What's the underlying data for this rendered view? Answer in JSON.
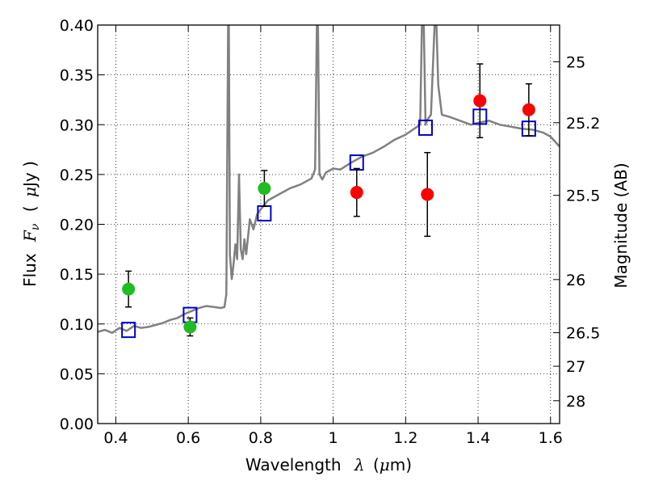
{
  "chart_data": {
    "type": "scatter",
    "xlabel": {
      "prefix": "Wavelength",
      "symbol": "λ",
      "unit_open": "(",
      "unit_mu": "μ",
      "unit_rest": "m)"
    },
    "ylabel": {
      "prefix": "Flux",
      "symbol": "F",
      "sub": "ν",
      "unit_open": "(",
      "unit_mu": "μ",
      "unit_rest": "Jy )"
    },
    "y2label": "Magnitude (AB)",
    "xlim": [
      0.35,
      1.625
    ],
    "ylim": [
      0.0,
      0.4
    ],
    "grid": true,
    "x_ticks": [
      {
        "v": 0.4,
        "label": "0.4"
      },
      {
        "v": 0.6,
        "label": "0.6"
      },
      {
        "v": 0.8,
        "label": "0.8"
      },
      {
        "v": 1.0,
        "label": "1"
      },
      {
        "v": 1.2,
        "label": "1.2"
      },
      {
        "v": 1.4,
        "label": "1.4"
      },
      {
        "v": 1.6,
        "label": "1.6"
      }
    ],
    "y_ticks": [
      {
        "v": 0.0,
        "label": "0.00"
      },
      {
        "v": 0.05,
        "label": "0.05"
      },
      {
        "v": 0.1,
        "label": "0.10"
      },
      {
        "v": 0.15,
        "label": "0.15"
      },
      {
        "v": 0.2,
        "label": "0.20"
      },
      {
        "v": 0.25,
        "label": "0.25"
      },
      {
        "v": 0.3,
        "label": "0.30"
      },
      {
        "v": 0.35,
        "label": "0.35"
      },
      {
        "v": 0.4,
        "label": "0.40"
      }
    ],
    "y2_ticks": [
      {
        "mag": 25,
        "label": "25"
      },
      {
        "mag": 25.2,
        "label": "25.2"
      },
      {
        "mag": 25.5,
        "label": "25.5"
      },
      {
        "mag": 26,
        "label": "26"
      },
      {
        "mag": 26.5,
        "label": "26.5"
      },
      {
        "mag": 27,
        "label": "27"
      },
      {
        "mag": 28,
        "label": "28"
      }
    ],
    "series": [
      {
        "kind": "line",
        "color": "#808080",
        "x": [
          0.35,
          0.37,
          0.39,
          0.41,
          0.43,
          0.45,
          0.47,
          0.49,
          0.51,
          0.53,
          0.55,
          0.57,
          0.59,
          0.61,
          0.63,
          0.65,
          0.67,
          0.69,
          0.7,
          0.705,
          0.71,
          0.712,
          0.715,
          0.72,
          0.725,
          0.73,
          0.735,
          0.74,
          0.745,
          0.75,
          0.755,
          0.76,
          0.77,
          0.78,
          0.79,
          0.8,
          0.82,
          0.85,
          0.88,
          0.91,
          0.94,
          0.95,
          0.955,
          0.958,
          0.962,
          0.97,
          0.98,
          1.0,
          1.02,
          1.05,
          1.08,
          1.11,
          1.14,
          1.17,
          1.2,
          1.22,
          1.24,
          1.245,
          1.25,
          1.255,
          1.26,
          1.27,
          1.28,
          1.285,
          1.29,
          1.3,
          1.32,
          1.35,
          1.38,
          1.4,
          1.43,
          1.46,
          1.49,
          1.52,
          1.55,
          1.58,
          1.6,
          1.625
        ],
        "y": [
          0.092,
          0.094,
          0.091,
          0.096,
          0.093,
          0.098,
          0.096,
          0.097,
          0.099,
          0.101,
          0.104,
          0.106,
          0.11,
          0.113,
          0.116,
          0.118,
          0.117,
          0.116,
          0.117,
          0.13,
          0.4,
          0.4,
          0.17,
          0.145,
          0.16,
          0.18,
          0.165,
          0.25,
          0.175,
          0.165,
          0.185,
          0.17,
          0.205,
          0.195,
          0.21,
          0.215,
          0.224,
          0.23,
          0.236,
          0.24,
          0.246,
          0.255,
          0.4,
          0.4,
          0.25,
          0.245,
          0.252,
          0.256,
          0.255,
          0.262,
          0.268,
          0.272,
          0.278,
          0.285,
          0.29,
          0.295,
          0.3,
          0.4,
          0.4,
          0.3,
          0.305,
          0.31,
          0.4,
          0.4,
          0.34,
          0.31,
          0.308,
          0.304,
          0.3,
          0.302,
          0.304,
          0.3,
          0.298,
          0.296,
          0.295,
          0.292,
          0.288,
          0.278
        ]
      },
      {
        "kind": "model_boxes",
        "color": "#0000cc",
        "x": [
          0.435,
          0.605,
          0.81,
          1.065,
          1.255,
          1.405,
          1.54
        ],
        "y": [
          0.094,
          0.109,
          0.211,
          0.262,
          0.297,
          0.308,
          0.296
        ]
      },
      {
        "kind": "points",
        "color": "#22bb22",
        "x": [
          0.435,
          0.605,
          0.81
        ],
        "y": [
          0.135,
          0.097,
          0.236
        ],
        "err": [
          0.018,
          0.009,
          0.018
        ]
      },
      {
        "kind": "points",
        "color": "#ff0000",
        "x": [
          1.065,
          1.26,
          1.405,
          1.54
        ],
        "y": [
          0.232,
          0.23,
          0.324,
          0.315
        ],
        "err": [
          0.024,
          0.042,
          0.037,
          0.026
        ]
      }
    ]
  }
}
